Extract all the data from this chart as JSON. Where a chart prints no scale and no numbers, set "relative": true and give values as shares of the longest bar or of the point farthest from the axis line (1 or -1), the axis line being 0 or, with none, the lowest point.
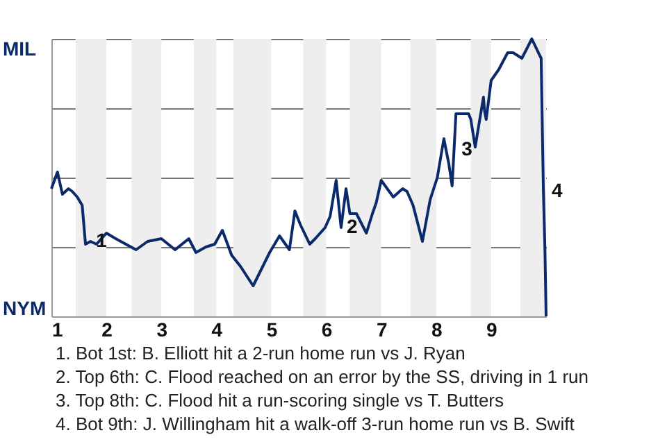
{
  "chart_data": {
    "type": "line",
    "relative": true,
    "x": [
      1.0,
      1.11,
      1.2,
      1.31,
      1.38,
      1.47,
      1.56,
      1.62,
      1.71,
      1.82,
      2.0,
      2.17,
      2.54,
      2.75,
      3.0,
      3.25,
      3.5,
      3.63,
      3.81,
      3.97,
      4.11,
      4.28,
      4.44,
      4.67,
      4.97,
      5.15,
      5.33,
      5.43,
      5.53,
      5.7,
      5.8,
      5.98,
      6.07,
      6.18,
      6.27,
      6.36,
      6.43,
      6.55,
      6.73,
      6.84,
      6.91,
      7.0,
      7.22,
      7.39,
      7.47,
      7.58,
      7.75,
      7.89,
      8.02,
      8.14,
      8.23,
      8.29,
      8.36,
      8.59,
      8.63,
      8.71,
      8.86,
      8.88,
      8.91,
      9.0,
      9.14,
      9.3,
      9.4,
      9.56,
      9.74,
      9.86,
      9.91,
      9.93,
      9.95,
      9.98,
      10.0
    ],
    "series": [
      {
        "color": "#0b2a6b",
        "values": [
          0.46,
          0.52,
          0.44,
          0.46,
          0.45,
          0.43,
          0.4,
          0.26,
          0.27,
          0.26,
          0.3,
          0.28,
          0.24,
          0.27,
          0.28,
          0.24,
          0.28,
          0.23,
          0.25,
          0.26,
          0.31,
          0.22,
          0.18,
          0.11,
          0.23,
          0.29,
          0.24,
          0.38,
          0.33,
          0.26,
          0.28,
          0.32,
          0.36,
          0.49,
          0.32,
          0.46,
          0.37,
          0.37,
          0.3,
          0.37,
          0.41,
          0.49,
          0.43,
          0.46,
          0.45,
          0.4,
          0.27,
          0.42,
          0.5,
          0.64,
          0.55,
          0.47,
          0.73,
          0.73,
          0.71,
          0.61,
          0.79,
          0.74,
          0.71,
          0.85,
          0.89,
          0.95,
          0.95,
          0.93,
          1.0,
          0.95,
          0.93,
          0.69,
          0.46,
          0.23,
          0.0
        ]
      }
    ],
    "xlim": [
      1,
      10
    ],
    "xticks": [
      1,
      2,
      3,
      4,
      5,
      6,
      7,
      8,
      9
    ],
    "grid": "y",
    "bands": [
      {
        "axis": "x",
        "from": 1.44,
        "to": 2.0,
        "color": "#eeeeee"
      },
      {
        "axis": "x",
        "from": 2.46,
        "to": 3.0,
        "color": "#eeeeee"
      },
      {
        "axis": "x",
        "from": 3.59,
        "to": 4.0,
        "color": "#eeeeee"
      },
      {
        "axis": "x",
        "from": 4.31,
        "to": 5.0,
        "color": "#eeeeee"
      },
      {
        "axis": "x",
        "from": 5.58,
        "to": 6.0,
        "color": "#eeeeee"
      },
      {
        "axis": "x",
        "from": 6.43,
        "to": 7.0,
        "color": "#eeeeee"
      },
      {
        "axis": "x",
        "from": 7.53,
        "to": 8.0,
        "color": "#eeeeee"
      },
      {
        "axis": "x",
        "from": 8.63,
        "to": 9.0,
        "color": "#eeeeee"
      },
      {
        "axis": "x",
        "from": 9.53,
        "to": 10.0,
        "color": "#eeeeee"
      }
    ],
    "annotations": [
      "MIL",
      "NYM",
      {
        "text": "1",
        "x": 1.71,
        "y": 0.27
      },
      {
        "text": "2",
        "x": 6.27,
        "y": 0.32
      },
      {
        "text": "3",
        "x": 8.36,
        "y": 0.6
      },
      {
        "text": "4",
        "x": 10.0,
        "y": 0.45
      },
      "1. Bot 1st: B. Elliott hit a 2-run home run vs J. Ryan",
      "2. Top 6th: C. Flood reached on an error by the SS, driving in 1 run",
      "3. Top 8th: C. Flood hit a run-scoring single vs T. Butters",
      "4. Bot 9th: J. Willingham hit a walk-off 3-run home run vs B. Swift"
    ]
  }
}
